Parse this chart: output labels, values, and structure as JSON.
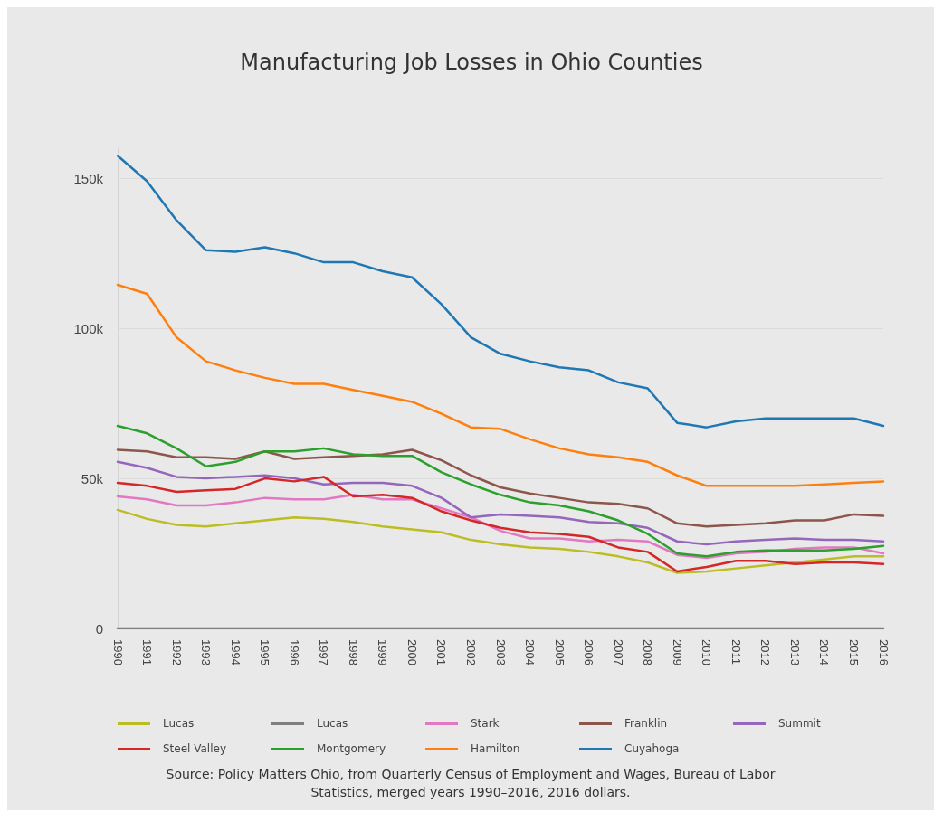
{
  "chart_data": {
    "type": "line",
    "title": "Manufacturing Job Losses in Ohio Counties",
    "categories": [
      "1990",
      "1991",
      "1992",
      "1993",
      "1994",
      "1995",
      "1996",
      "1997",
      "1998",
      "1999",
      "2000",
      "2001",
      "2002",
      "2003",
      "2004",
      "2005",
      "2006",
      "2007",
      "2008",
      "2009",
      "2010",
      "2011",
      "2012",
      "2013",
      "2014",
      "2015",
      "2016"
    ],
    "ylim": [
      0,
      160000
    ],
    "yticks": [
      0,
      {
        "value": 50000,
        "label": "50k"
      },
      {
        "value": 100000,
        "label": "100k"
      },
      {
        "value": 150000,
        "label": "150k"
      }
    ],
    "grid": "y",
    "legend": "bottom",
    "marker": "none",
    "line_style": "solid",
    "annotations": [
      "Source: Policy Matters Ohio, from Quarterly Census of Employment and Wages, Bureau of Labor Statistics, merged years 1990–2016, 2016 dollars."
    ],
    "series": [
      {
        "name": "Lucas",
        "color": "#bcbd22",
        "values": [
          39500,
          36500,
          34500,
          34000,
          35000,
          36000,
          37000,
          36500,
          35500,
          34000,
          33000,
          32000,
          29500,
          28000,
          27000,
          26500,
          25500,
          24000,
          22000,
          18500,
          19000,
          20000,
          21000,
          22000,
          23000,
          24000,
          24000
        ]
      },
      {
        "name": "Lucas",
        "color": "#7f7f7f",
        "values": [
          0,
          0,
          0,
          0,
          0,
          0,
          0,
          0,
          0,
          0,
          0,
          0,
          0,
          0,
          0,
          0,
          0,
          0,
          0,
          0,
          0,
          0,
          0,
          0,
          0,
          0,
          0
        ]
      },
      {
        "name": "Stark",
        "color": "#e377c2",
        "values": [
          44000,
          43000,
          41000,
          41000,
          42000,
          43500,
          43000,
          43000,
          44500,
          43000,
          43000,
          40000,
          37000,
          32500,
          30000,
          30000,
          29000,
          29500,
          29000,
          24500,
          23500,
          25000,
          25500,
          26500,
          27000,
          27000,
          25000
        ]
      },
      {
        "name": "Franklin",
        "color": "#8c564b",
        "values": [
          59500,
          59000,
          57000,
          57000,
          56500,
          59000,
          56500,
          57000,
          57500,
          58000,
          59500,
          56000,
          51000,
          47000,
          45000,
          43500,
          42000,
          41500,
          40000,
          35000,
          34000,
          34500,
          35000,
          36000,
          36000,
          38000,
          37500
        ]
      },
      {
        "name": "Summit",
        "color": "#9467bd",
        "values": [
          55500,
          53500,
          50500,
          50000,
          50500,
          51000,
          50000,
          48000,
          48500,
          48500,
          47500,
          43500,
          37000,
          38000,
          37500,
          37000,
          35500,
          35000,
          33500,
          29000,
          28000,
          29000,
          29500,
          30000,
          29500,
          29500,
          29000
        ]
      },
      {
        "name": "Steel Valley",
        "color": "#d62728",
        "values": [
          48500,
          47500,
          45500,
          46000,
          46500,
          50000,
          49000,
          50500,
          44000,
          44500,
          43500,
          39000,
          36000,
          33500,
          32000,
          31500,
          30500,
          27000,
          25500,
          19000,
          20500,
          22500,
          22500,
          21500,
          22000,
          22000,
          21500
        ]
      },
      {
        "name": "Montgomery",
        "color": "#2ca02c",
        "values": [
          67500,
          65000,
          60000,
          54000,
          55500,
          59000,
          59000,
          60000,
          58000,
          57500,
          57500,
          52000,
          48000,
          44500,
          42000,
          41000,
          39000,
          36000,
          31500,
          25000,
          24000,
          25500,
          26000,
          26000,
          26000,
          26500,
          27500
        ]
      },
      {
        "name": "Hamilton",
        "color": "#ff7f0e",
        "values": [
          114500,
          111500,
          97000,
          89000,
          86000,
          83500,
          81500,
          81500,
          79500,
          77500,
          75500,
          71500,
          67000,
          66500,
          63000,
          60000,
          58000,
          57000,
          55500,
          51000,
          47500,
          47500,
          47500,
          47500,
          48000,
          48500,
          49000
        ]
      },
      {
        "name": "Cuyahoga",
        "color": "#1f77b4",
        "values": [
          157500,
          149000,
          136000,
          126000,
          125500,
          127000,
          125000,
          122000,
          122000,
          119000,
          117000,
          108000,
          97000,
          91500,
          89000,
          87000,
          86000,
          82000,
          80000,
          68500,
          67000,
          69000,
          70000,
          70000,
          70000,
          70000,
          67500
        ]
      }
    ]
  }
}
